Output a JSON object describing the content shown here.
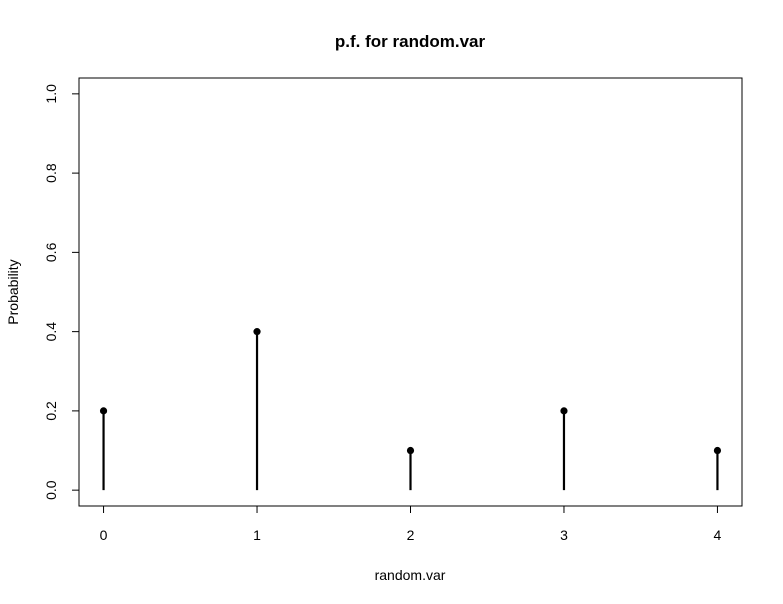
{
  "chart_data": {
    "type": "bar",
    "title": "p.f. for random.var",
    "xlabel": "random.var",
    "ylabel": "Probability",
    "categories": [
      "0",
      "1",
      "2",
      "3",
      "4"
    ],
    "x": [
      0,
      1,
      2,
      3,
      4
    ],
    "values": [
      0.2,
      0.4,
      0.1,
      0.2,
      0.1
    ],
    "xlim": [
      -0.16,
      4.16
    ],
    "ylim": [
      -0.04,
      1.04
    ],
    "xticks": [
      0,
      1,
      2,
      3,
      4
    ],
    "yticks": [
      0.0,
      0.2,
      0.4,
      0.6,
      0.8,
      1.0
    ],
    "xtick_labels": [
      "0",
      "1",
      "2",
      "3",
      "4"
    ],
    "ytick_labels": [
      "0.0",
      "0.2",
      "0.4",
      "0.6",
      "0.8",
      "1.0"
    ],
    "style": "stem with point markers",
    "grid": false,
    "legend": "none",
    "colors": {
      "stem": "#000000",
      "marker": "#000000",
      "axis": "#000000",
      "background": "#ffffff"
    }
  }
}
